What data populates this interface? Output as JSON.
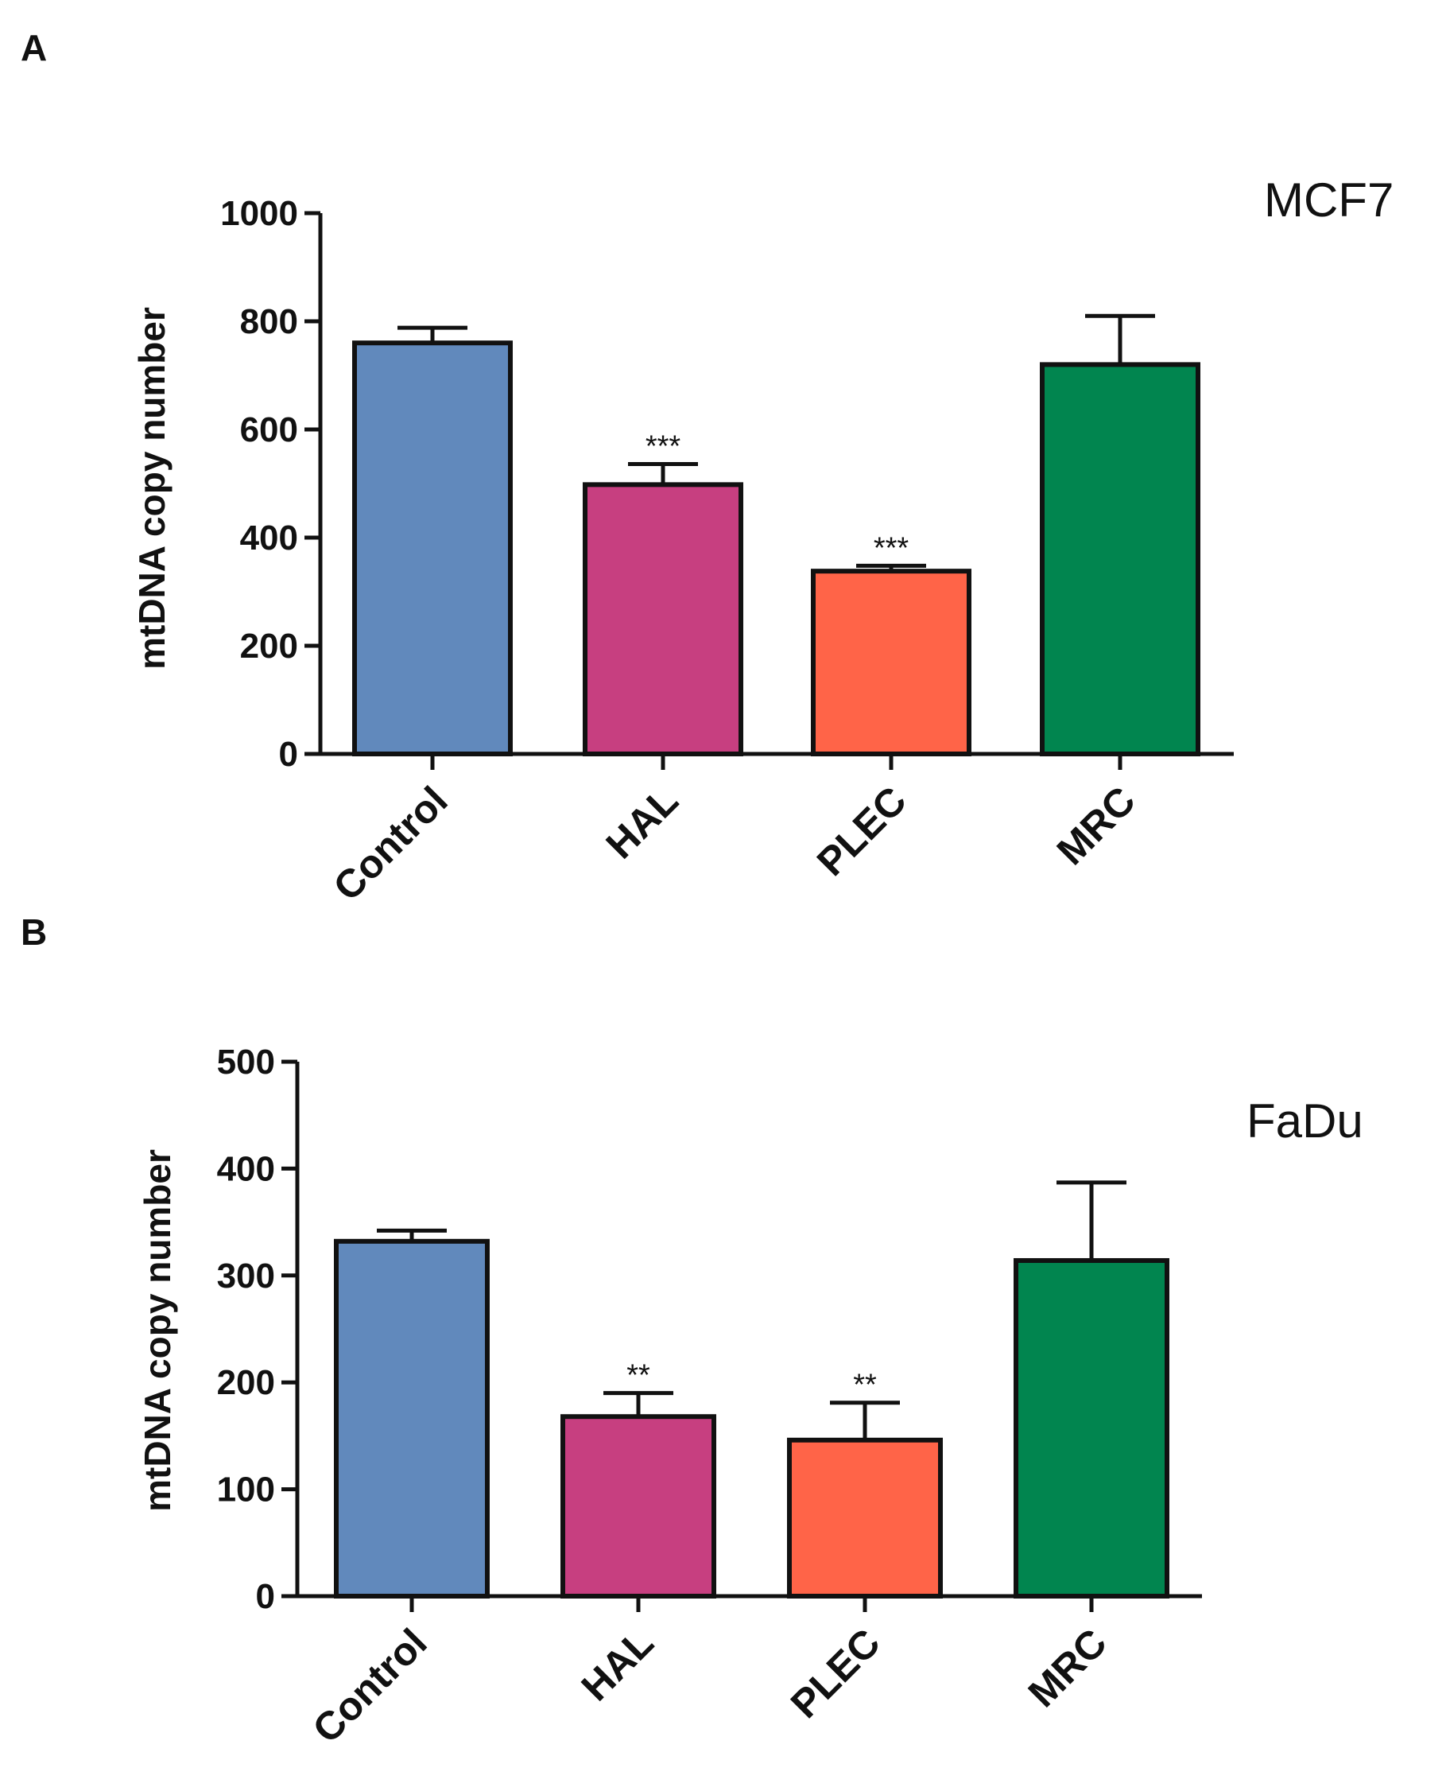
{
  "chart_data": [
    {
      "type": "bar",
      "panel_label": "A",
      "cell_line": "MCF7",
      "ylabel": "mtDNA copy number",
      "xlabel": "",
      "ylim": [
        0,
        1000
      ],
      "yticks": [
        "0",
        "200",
        "400",
        "600",
        "800",
        "1000"
      ],
      "categories": [
        "Control",
        "HAL",
        "PLEC",
        "MRC"
      ],
      "values": [
        760,
        498,
        338,
        720
      ],
      "errors": [
        28,
        38,
        10,
        90
      ],
      "significance": [
        "",
        "***",
        "***",
        ""
      ],
      "colors": [
        "#6189BC",
        "#C73F80",
        "#FF6448",
        "#01854F"
      ]
    },
    {
      "type": "bar",
      "panel_label": "B",
      "cell_line": "FaDu",
      "ylabel": "mtDNA copy number",
      "xlabel": "",
      "ylim": [
        0,
        500
      ],
      "yticks": [
        "0",
        "100",
        "200",
        "300",
        "400",
        "500"
      ],
      "categories": [
        "Control",
        "HAL",
        "PLEC",
        "MRC"
      ],
      "values": [
        332,
        168,
        146,
        314
      ],
      "errors": [
        10,
        22,
        35,
        73
      ],
      "significance": [
        "",
        "**",
        "**",
        ""
      ],
      "colors": [
        "#6189BC",
        "#C73F80",
        "#FF6448",
        "#01854F"
      ]
    }
  ]
}
